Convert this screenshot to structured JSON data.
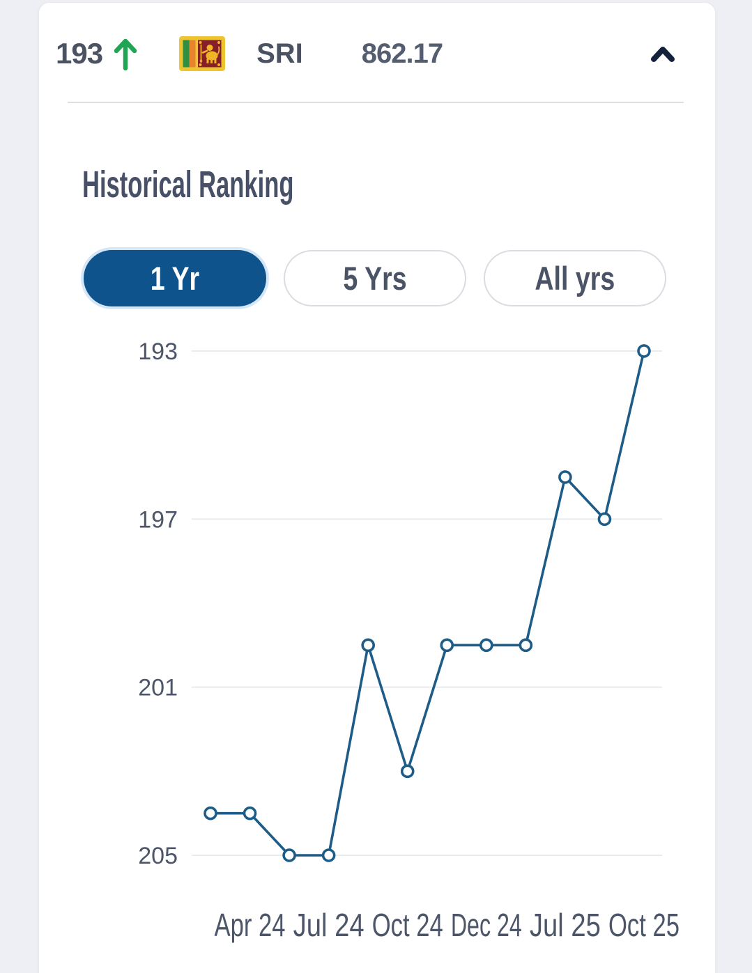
{
  "header": {
    "rank": "193",
    "rank_change": "up",
    "country_code": "SRI",
    "country_name": "Sri Lanka",
    "points": "862.17"
  },
  "icons": {
    "rank_change_up": "arrow-up",
    "collapse": "chevron-up",
    "flag": "sri-lanka-flag"
  },
  "section_title": "Historical Ranking",
  "tabs": [
    {
      "label": "1 Yr",
      "active": true
    },
    {
      "label": "5 Yrs",
      "active": false
    },
    {
      "label": "All yrs",
      "active": false
    }
  ],
  "colors": {
    "positive_green": "#22a455",
    "active_tab_blue": "#0f538c",
    "chart_line_blue": "#1e5c88",
    "text_slate": "#4b5363",
    "chevron_navy": "#14213a",
    "gridline_gray": "#e9ebef"
  },
  "chart_data": {
    "type": "line",
    "title": "Historical Ranking",
    "series": [
      {
        "name": "Ranking",
        "values": [
          204,
          204,
          205,
          205,
          200,
          203,
          200,
          200,
          200,
          196,
          197,
          193
        ]
      }
    ],
    "x_labels": [
      "",
      "Apr 24",
      "",
      "Jul 24",
      "",
      "Oct 24",
      "",
      "Dec 24",
      "",
      "Jul 25",
      "",
      "Oct 25"
    ],
    "y_ticks": [
      193,
      197,
      201,
      205
    ],
    "ylim": [
      193,
      205
    ],
    "y_inverted": true,
    "grid": "horizontal",
    "marker": "open-circle",
    "legend": "none"
  }
}
